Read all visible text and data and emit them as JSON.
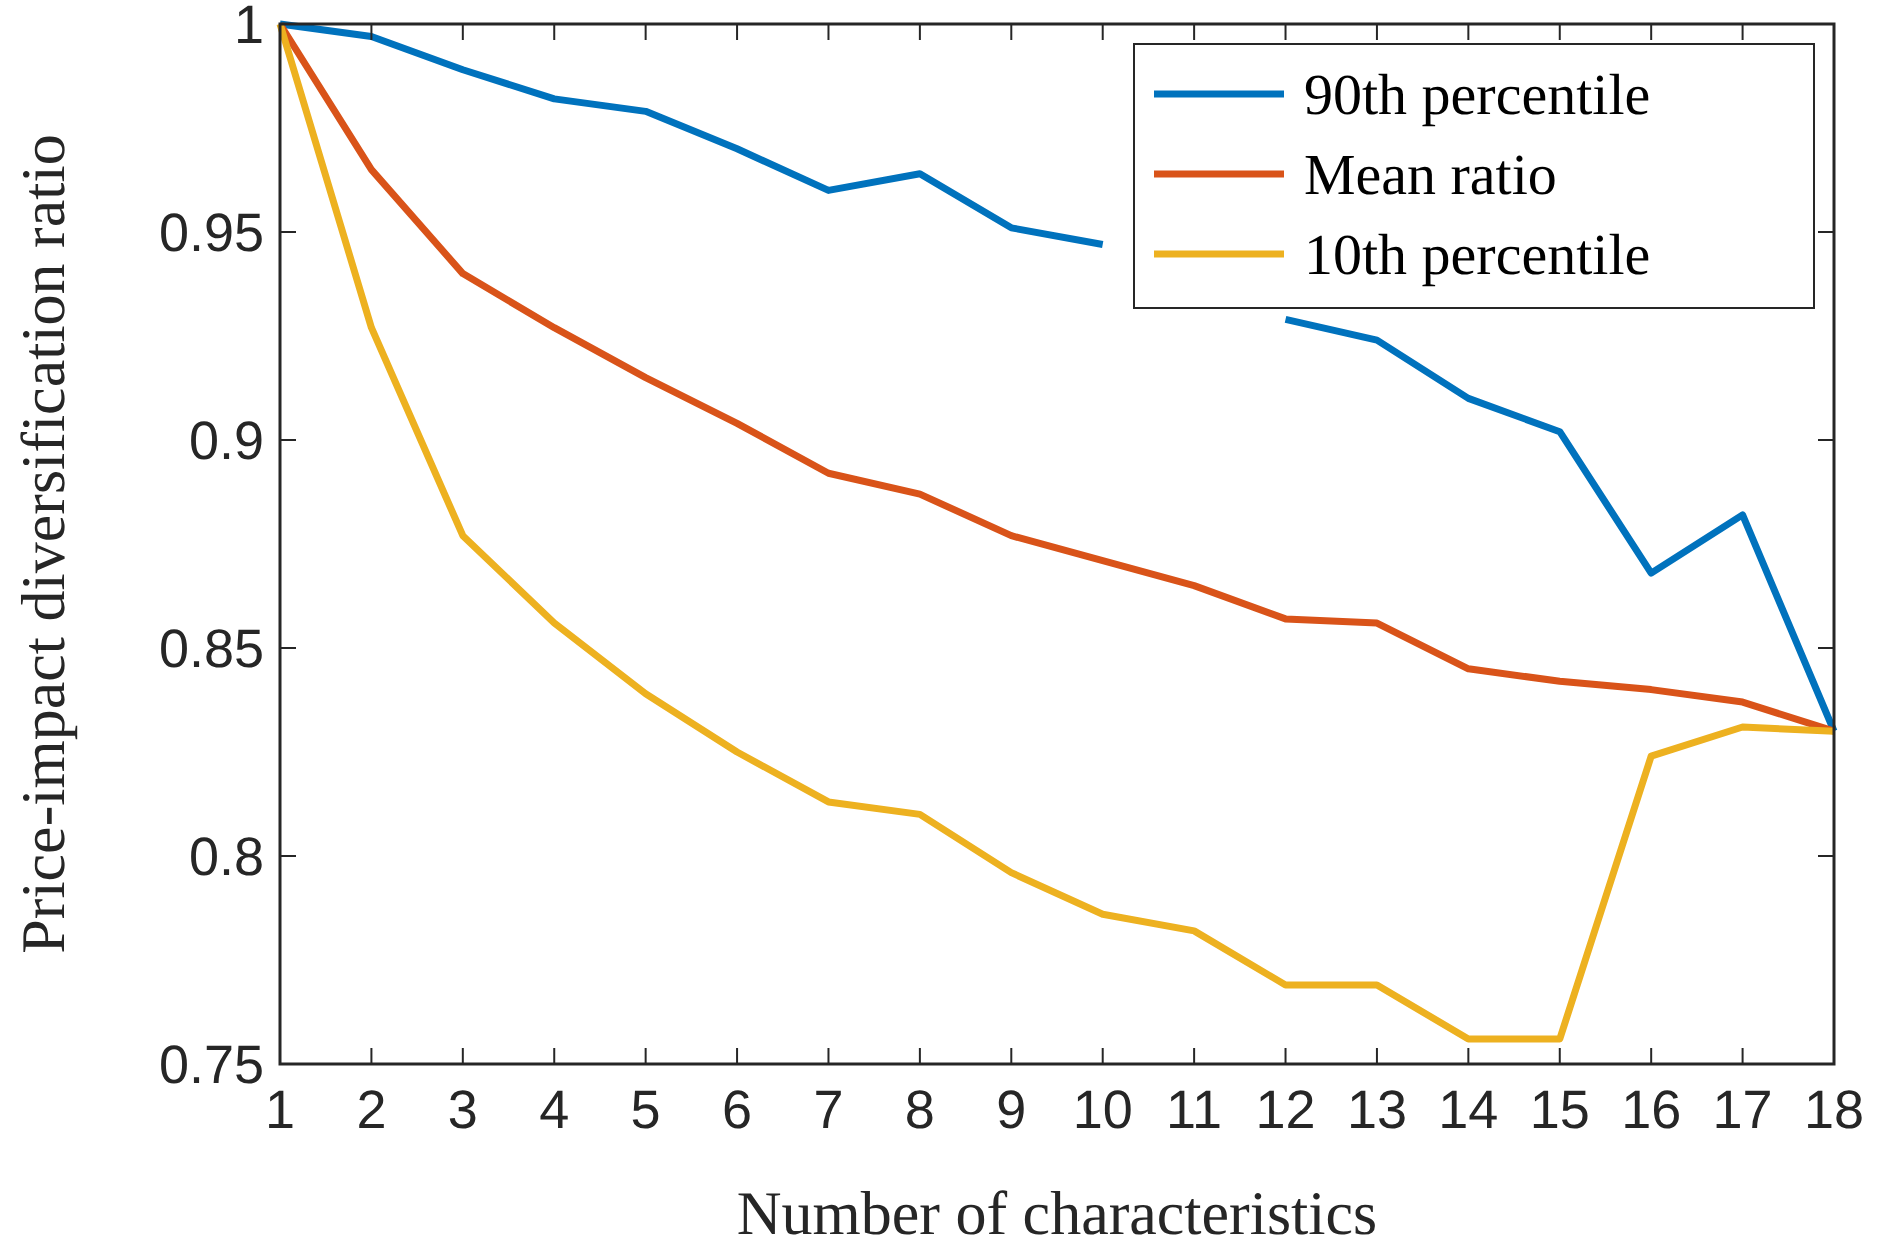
{
  "chart_data": {
    "type": "line",
    "xlabel": "Number of characteristics",
    "ylabel": "Price-impact diversification ratio",
    "x": [
      1,
      2,
      3,
      4,
      5,
      6,
      7,
      8,
      9,
      10,
      11,
      12,
      13,
      14,
      15,
      16,
      17,
      18
    ],
    "xlim": [
      1,
      18
    ],
    "xticks": [
      1,
      2,
      3,
      4,
      5,
      6,
      7,
      8,
      9,
      10,
      11,
      12,
      13,
      14,
      15,
      16,
      17,
      18
    ],
    "ylim": [
      0.75,
      1
    ],
    "yticks": [
      0.75,
      0.8,
      0.85,
      0.9,
      0.95,
      1
    ],
    "legend": "top right",
    "grid": false,
    "marker": "none",
    "line_style": "solid",
    "series": [
      {
        "name": "90th percentile",
        "color": "#0072bd",
        "values": [
          1.0,
          0.997,
          0.989,
          0.982,
          0.979,
          0.97,
          0.96,
          0.964,
          0.951,
          0.947,
          null,
          0.929,
          0.924,
          0.91,
          0.902,
          0.868,
          0.882,
          0.83
        ]
      },
      {
        "name": "Mean ratio",
        "color": "#d95319",
        "values": [
          1.0,
          0.965,
          0.94,
          0.927,
          0.915,
          0.904,
          0.892,
          0.887,
          0.877,
          0.871,
          0.865,
          0.857,
          0.856,
          0.845,
          0.842,
          0.84,
          0.837,
          0.83
        ]
      },
      {
        "name": "10th percentile",
        "color": "#edb120",
        "values": [
          1.0,
          0.927,
          0.877,
          0.856,
          0.839,
          0.825,
          0.813,
          0.81,
          0.796,
          0.786,
          0.782,
          0.769,
          0.769,
          0.756,
          0.756,
          0.824,
          0.831,
          0.83
        ]
      }
    ]
  }
}
